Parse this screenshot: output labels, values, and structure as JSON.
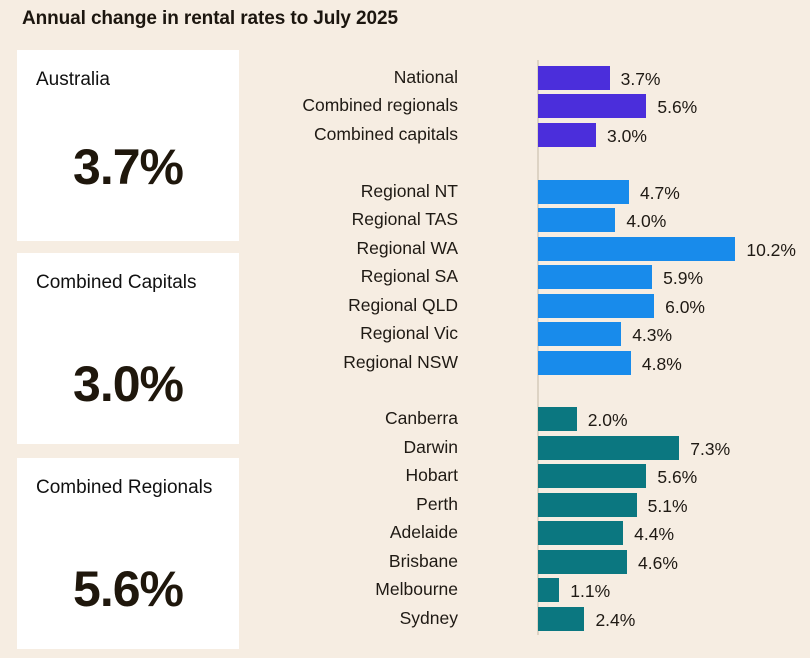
{
  "title": "Annual change in rental rates to July 2025",
  "cards": [
    {
      "label": "Australia",
      "value": "3.7%"
    },
    {
      "label": "Combined Capitals",
      "value": "3.0%"
    },
    {
      "label": "Combined Regionals",
      "value": "5.6%"
    }
  ],
  "colors": {
    "summary": "#4b2edb",
    "regional": "#188beb",
    "capital": "#0b7780",
    "background": "#f6ede2"
  },
  "chart_data": {
    "type": "bar",
    "orientation": "horizontal",
    "title": "Annual change in rental rates to July 2025",
    "xlabel": "",
    "ylabel": "",
    "unit": "%",
    "xlim": [
      0,
      10.2
    ],
    "grid": false,
    "groups": [
      {
        "name": "summary",
        "color": "#4b2edb",
        "categories": [
          "National",
          "Combined regionals",
          "Combined capitals"
        ],
        "values": [
          3.7,
          5.6,
          3.0
        ],
        "labels": [
          "3.7%",
          "5.6%",
          "3.0%"
        ]
      },
      {
        "name": "regional",
        "color": "#188beb",
        "categories": [
          "Regional NT",
          "Regional TAS",
          "Regional WA",
          "Regional SA",
          "Regional QLD",
          "Regional Vic",
          "Regional NSW"
        ],
        "values": [
          4.7,
          4.0,
          10.2,
          5.9,
          6.0,
          4.3,
          4.8
        ],
        "labels": [
          "4.7%",
          "4.0%",
          "10.2%",
          "5.9%",
          "6.0%",
          "4.3%",
          "4.8%"
        ]
      },
      {
        "name": "capital",
        "color": "#0b7780",
        "categories": [
          "Canberra",
          "Darwin",
          "Hobart",
          "Perth",
          "Adelaide",
          "Brisbane",
          "Melbourne",
          "Sydney"
        ],
        "values": [
          2.0,
          7.3,
          5.6,
          5.1,
          4.4,
          4.6,
          1.1,
          2.4
        ],
        "labels": [
          "2.0%",
          "7.3%",
          "5.6%",
          "5.1%",
          "4.4%",
          "4.6%",
          "1.1%",
          "2.4%"
        ]
      }
    ]
  }
}
